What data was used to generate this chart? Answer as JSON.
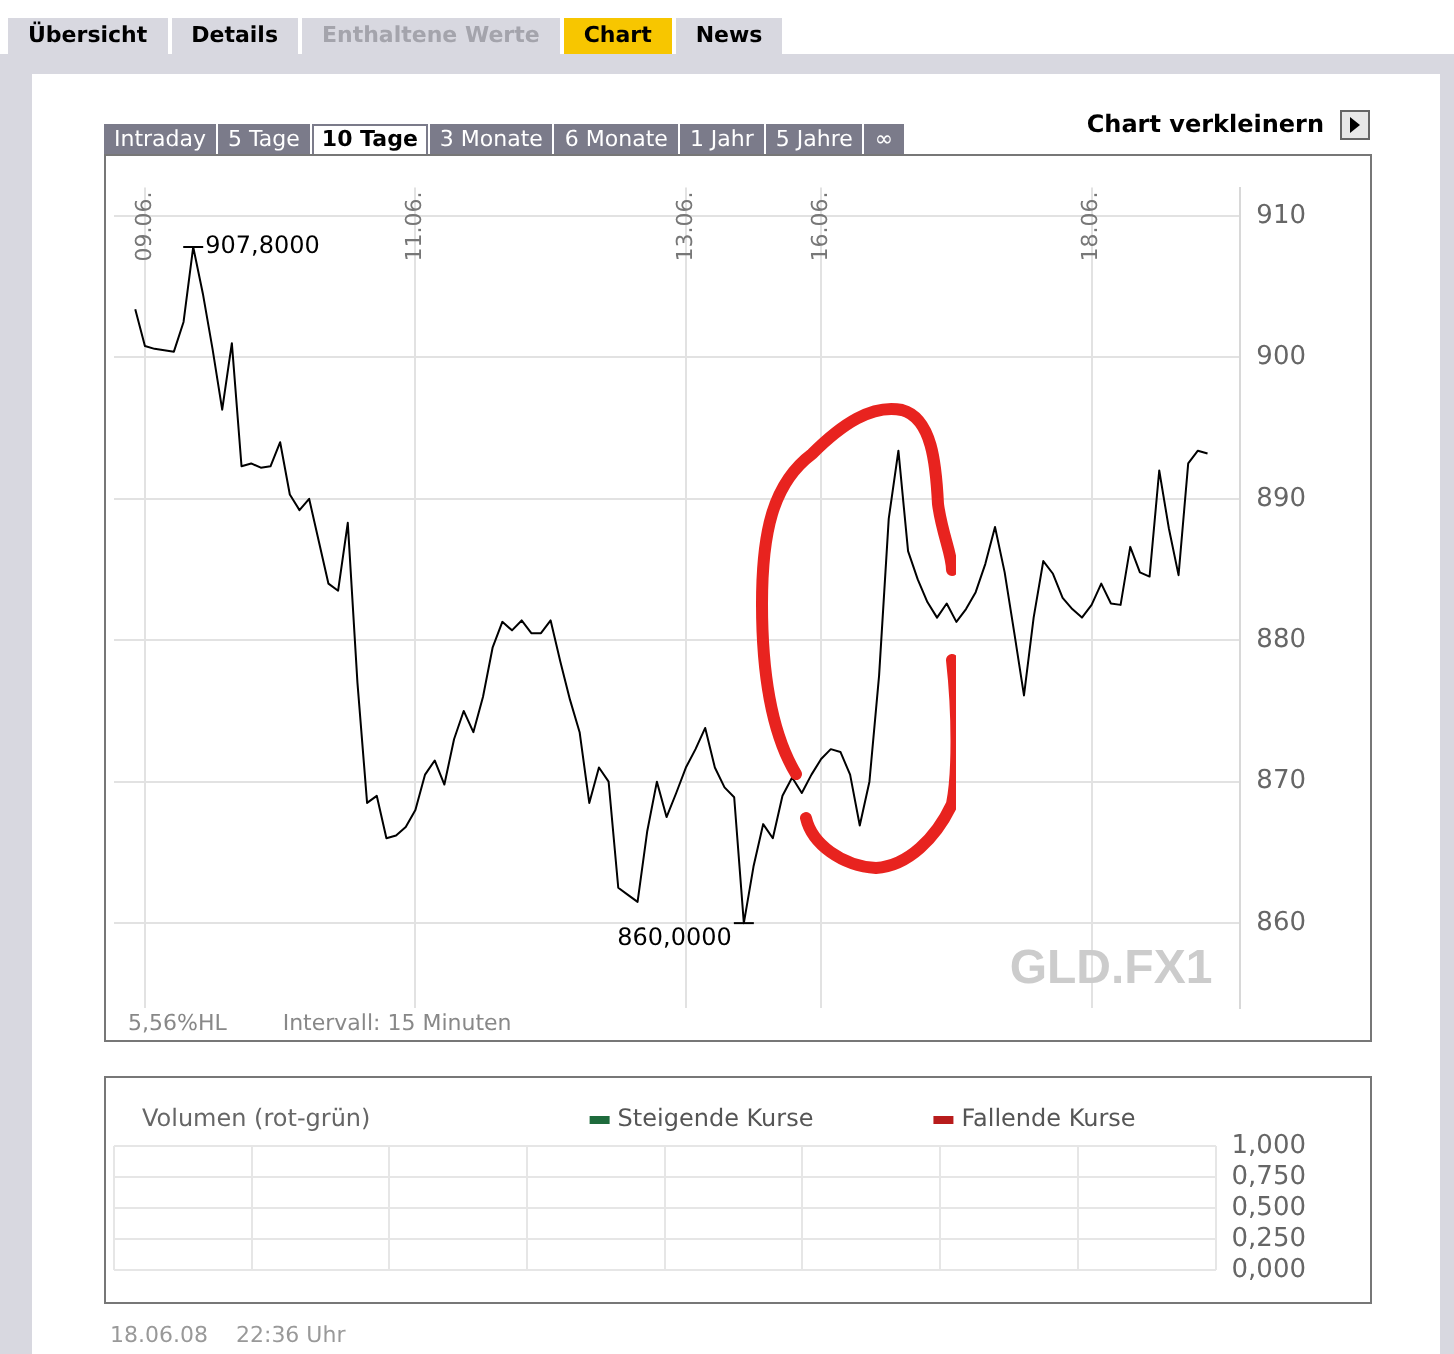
{
  "chart_data": [
    {
      "type": "other",
      "annotations": [
        "Übersicht",
        "Details",
        "Enthaltene Werte",
        "Chart",
        "News",
        "Intraday",
        "5 Tage",
        "10 Tage",
        "3 Monate",
        "6 Monate",
        "1 Jahr",
        "5 Jahre",
        "∞",
        "Chart verkleinern"
      ]
    },
    {
      "type": "line",
      "categories": [
        null,
        "09.06.",
        null,
        null,
        null,
        null,
        null,
        null,
        null,
        null,
        null,
        null,
        null,
        null,
        null,
        null,
        null,
        null,
        null,
        null,
        null,
        null,
        null,
        null,
        null,
        null,
        null,
        null,
        null,
        "11.06.",
        null,
        null,
        null,
        null,
        null,
        null,
        null,
        null,
        null,
        null,
        null,
        null,
        null,
        null,
        null,
        null,
        null,
        null,
        null,
        null,
        null,
        null,
        null,
        null,
        null,
        null,
        null,
        "13.06.",
        null,
        null,
        null,
        null,
        null,
        null,
        null,
        null,
        null,
        null,
        null,
        null,
        null,
        "16.06.",
        null,
        null,
        null,
        null,
        null,
        null,
        null,
        null,
        null,
        null,
        null,
        null,
        null,
        null,
        null,
        null,
        null,
        null,
        null,
        null,
        null,
        null,
        null,
        null,
        null,
        null,
        null,
        "18.06.",
        null,
        null,
        null,
        null,
        null,
        null,
        null,
        null,
        null,
        null,
        null,
        null
      ],
      "series": [
        {
          "color": "#000000",
          "values": [
            903.4,
            900.8,
            900.6,
            900.5,
            900.4,
            902.5,
            907.8,
            904.5,
            900.6,
            896.3,
            901.0,
            892.3,
            892.5,
            892.2,
            892.3,
            894.0,
            890.3,
            889.2,
            890.0,
            887.0,
            884.0,
            883.5,
            888.3,
            877.0,
            868.5,
            869.0,
            866.0,
            866.2,
            866.8,
            868.0,
            870.5,
            871.5,
            869.8,
            873.0,
            875.0,
            873.5,
            876.0,
            879.5,
            881.3,
            880.7,
            881.4,
            880.5,
            880.5,
            881.4,
            878.5,
            875.8,
            873.5,
            868.5,
            871.0,
            870.0,
            862.5,
            862.0,
            861.5,
            866.5,
            870.0,
            867.5,
            869.2,
            871.0,
            872.3,
            873.8,
            871.0,
            869.6,
            868.9,
            860.0,
            864.0,
            867.0,
            866.0,
            869.0,
            870.3,
            869.2,
            870.5,
            871.6,
            872.3,
            872.1,
            870.5,
            866.9,
            870.0,
            877.5,
            888.6,
            893.4,
            886.3,
            884.3,
            882.7,
            881.6,
            882.6,
            881.3,
            882.2,
            883.4,
            885.4,
            888.0,
            884.8,
            880.5,
            876.1,
            881.6,
            885.6,
            884.7,
            883.0,
            882.2,
            881.6,
            882.5,
            884.0,
            882.6,
            882.5,
            886.6,
            884.8,
            884.5,
            892.0,
            887.9,
            884.6,
            892.5,
            893.4,
            893.2
          ]
        }
      ],
      "ylim": [
        854,
        912
      ],
      "yticks": [
        860,
        870,
        880,
        890,
        900,
        910
      ],
      "grid": true,
      "annotations": [
        "907,8000",
        "860,0000",
        "5,56%HL",
        "Intervall: 15 Minuten",
        "GLD.FX1"
      ]
    },
    {
      "type": "bar",
      "title": "Volumen (rot-grün)",
      "categories": [
        null,
        null,
        null,
        null,
        null,
        null,
        null,
        null
      ],
      "series": [
        {
          "name": "Steigende Kurse",
          "color": "#1e6b3c",
          "values": [
            null,
            null,
            null,
            null,
            null,
            null,
            null,
            null
          ]
        },
        {
          "name": "Fallende Kurse",
          "color": "#b81c1c",
          "values": [
            null,
            null,
            null,
            null,
            null,
            null,
            null,
            null
          ]
        }
      ],
      "ylim": [
        0,
        1
      ],
      "yticks": [
        {
          "value": 0,
          "label": "0,000"
        },
        {
          "value": 0.25,
          "label": "0,250"
        },
        {
          "value": 0.5,
          "label": "0,500"
        },
        {
          "value": 0.75,
          "label": "0,750"
        },
        {
          "value": 1,
          "label": "1,000"
        }
      ],
      "grid": true,
      "legend": "top right",
      "annotations": [
        "18.06.08",
        "22:36 Uhr"
      ]
    }
  ]
}
